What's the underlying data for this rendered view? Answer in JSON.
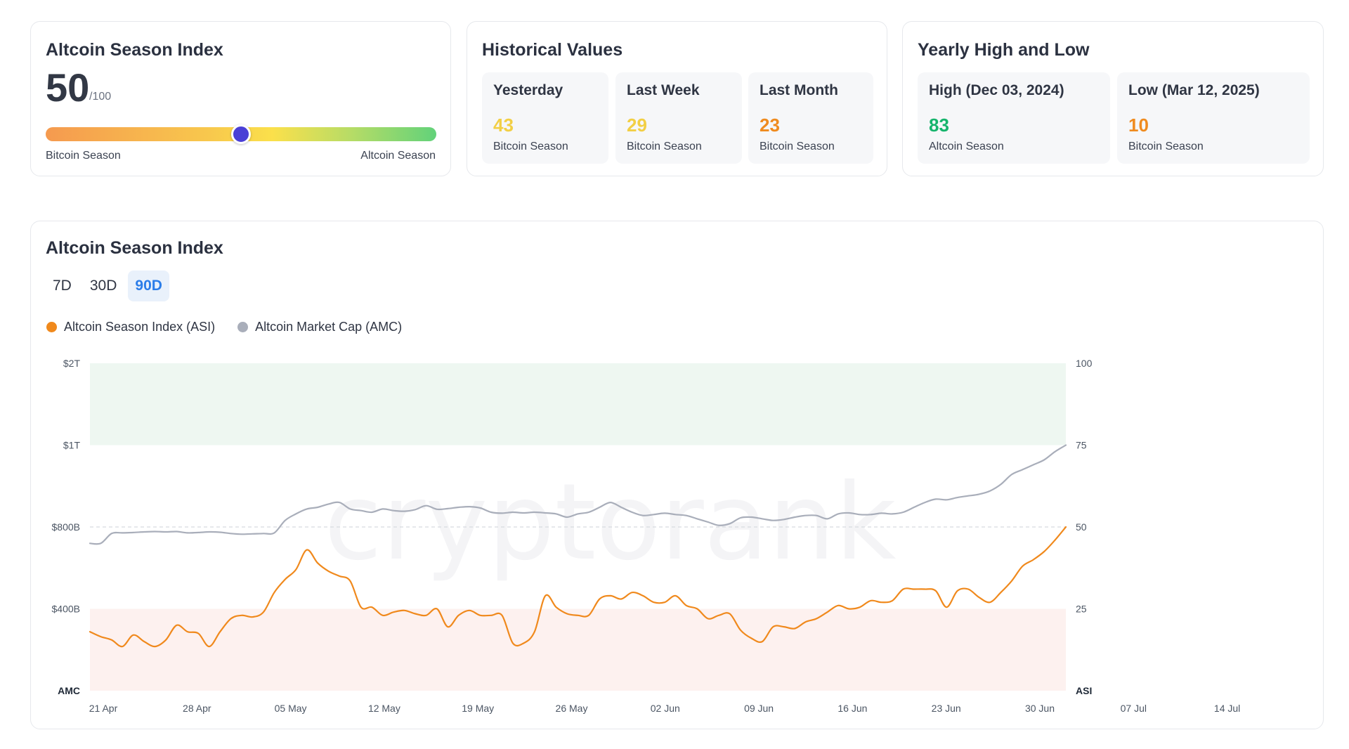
{
  "index_card": {
    "title": "Altcoin Season Index",
    "value": "50",
    "max": "/100",
    "gauge_level": 0.5,
    "left_label": "Bitcoin Season",
    "right_label": "Altcoin Season",
    "knob_color": "#4a3fd6"
  },
  "historical": {
    "title": "Historical Values",
    "items": [
      {
        "label": "Yesterday",
        "value": "43",
        "sub": "Bitcoin Season",
        "color": "#f2cf45"
      },
      {
        "label": "Last Week",
        "value": "29",
        "sub": "Bitcoin Season",
        "color": "#f2cf45"
      },
      {
        "label": "Last Month",
        "value": "23",
        "sub": "Bitcoin Season",
        "color": "#ef8b1f"
      }
    ]
  },
  "yearly": {
    "title": "Yearly High and Low",
    "items": [
      {
        "label": "High (Dec 03, 2024)",
        "value": "83",
        "sub": "Altcoin Season",
        "color": "#16b46c"
      },
      {
        "label": "Low (Mar 12, 2025)",
        "value": "10",
        "sub": "Bitcoin Season",
        "color": "#ef8b1f"
      }
    ]
  },
  "chart_card": {
    "title": "Altcoin Season Index",
    "tabs": [
      {
        "label": "7D",
        "active": false
      },
      {
        "label": "30D",
        "active": false
      },
      {
        "label": "90D",
        "active": true
      }
    ],
    "legend": [
      {
        "label": "Altcoin Season Index (ASI)",
        "color": "#f0891c"
      },
      {
        "label": "Altcoin Market Cap (AMC)",
        "color": "#a9aeba"
      }
    ],
    "watermark": "cryptorank"
  },
  "chart_data": {
    "type": "line",
    "x_labels": [
      "21 Apr",
      "28 Apr",
      "05 May",
      "12 May",
      "19 May",
      "26 May",
      "02 Jun",
      "09 Jun",
      "16 Jun",
      "23 Jun",
      "30 Jun",
      "07 Jul",
      "14 Jul"
    ],
    "left_axis": {
      "title": "AMC",
      "ticks": [
        "$2T",
        "$1T",
        "$800B",
        "$400B"
      ]
    },
    "right_axis": {
      "title": "ASI",
      "ticks": [
        "100",
        "75",
        "50",
        "25"
      ],
      "ylim": [
        0,
        100
      ]
    },
    "zones": [
      {
        "name": "altcoin-season",
        "from": 75,
        "to": 100,
        "color": "#eef7f1"
      },
      {
        "name": "bitcoin-season",
        "from": 0,
        "to": 25,
        "color": "#fdf1ef"
      }
    ],
    "reference_line": 50,
    "series": [
      {
        "name": "Altcoin Season Index (ASI)",
        "color": "#f0891c",
        "values": [
          18,
          16.5,
          15.5,
          13.5,
          17,
          15,
          13.5,
          15.5,
          20,
          18,
          17.5,
          13.5,
          18,
          22,
          23,
          22.5,
          24,
          30,
          34,
          37,
          43,
          39,
          36.5,
          35,
          33.5,
          25.5,
          25.5,
          23,
          24,
          24.5,
          23.5,
          23,
          25,
          19.5,
          23,
          24.5,
          23,
          23,
          23,
          14.5,
          14.5,
          18,
          29,
          25.5,
          23.5,
          23,
          23,
          28,
          29,
          28,
          30,
          29,
          27,
          27,
          29,
          26,
          25,
          22,
          23,
          23.5,
          18.5,
          16,
          15,
          19.5,
          19.5,
          19,
          21,
          22,
          24,
          26,
          25,
          25.5,
          27.5,
          27,
          27.5,
          31,
          31,
          31,
          30.5,
          25.5,
          30.5,
          31,
          28.5,
          27,
          30,
          33.5,
          38,
          40,
          42.5,
          46,
          50
        ]
      },
      {
        "name": "Altcoin Market Cap (AMC)",
        "color": "#a9aeba",
        "values": [
          45,
          45,
          48,
          48.2,
          48.3,
          48.5,
          48.6,
          48.5,
          48.6,
          48.2,
          48.3,
          48.5,
          48.4,
          48,
          47.8,
          47.9,
          48,
          48.2,
          52,
          54,
          55.5,
          56,
          57,
          57.5,
          55.5,
          55,
          54.5,
          55.5,
          55,
          54.8,
          55.3,
          56.5,
          55.4,
          55.6,
          56,
          56.2,
          55.8,
          54.5,
          54.2,
          54.5,
          54.3,
          54.5,
          54.3,
          54,
          53,
          54,
          54.5,
          56,
          57.5,
          56,
          54.5,
          53.5,
          53.8,
          54.2,
          53.8,
          53.5,
          52.5,
          51.5,
          50.5,
          51,
          52.8,
          53,
          52.5,
          52,
          52.3,
          53,
          53.5,
          53.5,
          52.5,
          54,
          54.3,
          53.8,
          53.8,
          54.2,
          54,
          54.5,
          56,
          57.5,
          58.5,
          58.3,
          59,
          59.5,
          60,
          61,
          63,
          66,
          67.5,
          69,
          70.5,
          73,
          75
        ]
      }
    ]
  }
}
